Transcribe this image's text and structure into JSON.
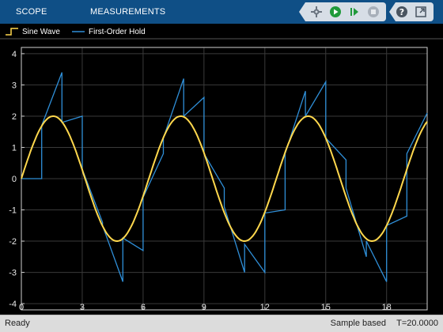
{
  "toolstrip": {
    "tabs": [
      {
        "label": "SCOPE"
      },
      {
        "label": "MEASUREMENTS"
      }
    ],
    "tools": [
      {
        "name": "signal-config-icon"
      },
      {
        "name": "run-icon"
      },
      {
        "name": "step-forward-icon"
      },
      {
        "name": "stop-icon"
      },
      {
        "name": "help-icon"
      },
      {
        "name": "undock-icon"
      }
    ]
  },
  "legend": {
    "items": [
      {
        "label": "Sine Wave",
        "color": "#ffd84d"
      },
      {
        "label": "First-Order Hold",
        "color": "#2f8fd8"
      }
    ]
  },
  "colors": {
    "accent": "#0f4f86",
    "sine": "#ffd84d",
    "hold": "#2f8fd8",
    "grid": "#3a3a3a",
    "axis": "#cfcfcf"
  },
  "chart_data": {
    "type": "line",
    "title": "",
    "xlabel": "",
    "ylabel": "",
    "xlim": [
      0,
      20
    ],
    "ylim": [
      -4.2,
      4.2
    ],
    "xticks": [
      0,
      3,
      6,
      9,
      12,
      15,
      18
    ],
    "yticks": [
      -4,
      -3,
      -2,
      -1,
      0,
      1,
      2,
      3,
      4
    ],
    "grid": true,
    "legend": "top-left",
    "series": [
      {
        "name": "Sine Wave",
        "kind": "function",
        "amplitude": 2,
        "frequency_rad_per_s": 1,
        "x_start": 0,
        "x_end": 20
      },
      {
        "name": "First-Order Hold",
        "kind": "points",
        "x": [
          0,
          0,
          1,
          1,
          2,
          2,
          3,
          3,
          4,
          4,
          5,
          5,
          6,
          6,
          7,
          7,
          8,
          8,
          9,
          9,
          10,
          10,
          11,
          11,
          12,
          12,
          13,
          13,
          14,
          14,
          15,
          15,
          16,
          16,
          17,
          17,
          18,
          18,
          19,
          19,
          20
        ],
        "y": [
          0,
          0,
          0,
          1.7,
          3.4,
          1.8,
          2.0,
          0.3,
          -1.4,
          -1.5,
          -3.3,
          -1.9,
          -2.3,
          -0.6,
          0.8,
          1.3,
          3.2,
          2.0,
          2.6,
          0.8,
          -0.3,
          -0.9,
          -3.0,
          -2.1,
          -3.0,
          -1.1,
          -1.0,
          0.8,
          2.8,
          2.0,
          3.1,
          1.3,
          0.6,
          -0.3,
          -2.5,
          -2.0,
          -3.3,
          -1.5,
          -1.2,
          0.8,
          2.1
        ]
      }
    ]
  },
  "status": {
    "left": "Ready",
    "mode": "Sample based",
    "time": "T=20.0000"
  }
}
